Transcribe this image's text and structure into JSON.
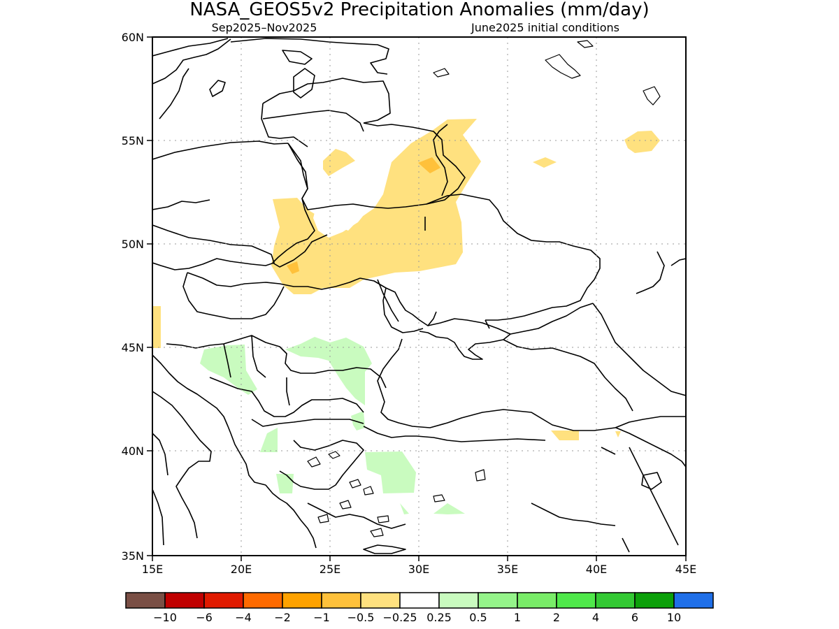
{
  "header": {
    "title": "NASA_GEOS5v2 Precipitation Anomalies (mm/day)",
    "subtitle_left": "Sep2025–Nov2025",
    "subtitle_right": "June2025 initial conditions"
  },
  "axes": {
    "lon_ticks": [
      "15E",
      "20E",
      "25E",
      "30E",
      "35E",
      "40E",
      "45E"
    ],
    "lat_ticks": [
      "60N",
      "55N",
      "50N",
      "45N",
      "40N",
      "35N"
    ]
  },
  "legend": {
    "colors": [
      "#7a4f45",
      "#c00000",
      "#e01a00",
      "#ff6a00",
      "#ffa200",
      "#ffc13b",
      "#ffe17f",
      "#ffffff",
      "#c9fbbf",
      "#95f48a",
      "#79ec68",
      "#4fe84a",
      "#33c933",
      "#0ca00a",
      "#1f6fe8"
    ],
    "labels": [
      "−10",
      "−6",
      "−4",
      "−2",
      "−1",
      "−0.5",
      "−0.25",
      "0.25",
      "0.5",
      "1",
      "2",
      "4",
      "6",
      "10"
    ]
  },
  "map": {
    "region": "Eastern Europe & Black Sea",
    "lon_range": [
      15,
      45
    ],
    "lat_range": [
      35,
      60
    ],
    "anomaly_colors": {
      "dry_light": "#ffe17f",
      "dry_medium": "#ffc13b",
      "dry_strong": "#ffa200",
      "wet_light": "#c9fbbf"
    }
  }
}
